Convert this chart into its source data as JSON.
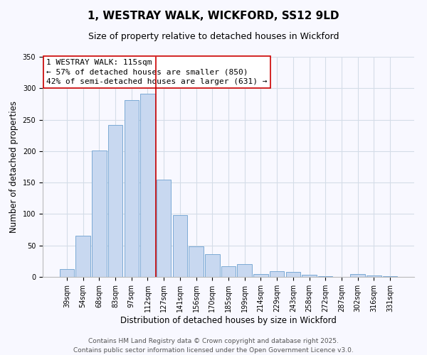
{
  "title": "1, WESTRAY WALK, WICKFORD, SS12 9LD",
  "subtitle": "Size of property relative to detached houses in Wickford",
  "xlabel": "Distribution of detached houses by size in Wickford",
  "ylabel": "Number of detached properties",
  "bar_labels": [
    "39sqm",
    "54sqm",
    "68sqm",
    "83sqm",
    "97sqm",
    "112sqm",
    "127sqm",
    "141sqm",
    "156sqm",
    "170sqm",
    "185sqm",
    "199sqm",
    "214sqm",
    "229sqm",
    "243sqm",
    "258sqm",
    "272sqm",
    "287sqm",
    "302sqm",
    "316sqm",
    "331sqm"
  ],
  "bar_values": [
    12,
    65,
    201,
    242,
    281,
    291,
    155,
    98,
    48,
    36,
    17,
    20,
    4,
    9,
    8,
    3,
    1,
    0,
    4,
    2,
    1
  ],
  "bar_color": "#c8d8f0",
  "bar_edge_color": "#7baad4",
  "vline_x": 5.5,
  "vline_color": "#cc0000",
  "annotation_title": "1 WESTRAY WALK: 115sqm",
  "annotation_line1": "← 57% of detached houses are smaller (850)",
  "annotation_line2": "42% of semi-detached houses are larger (631) →",
  "annotation_box_color": "#ffffff",
  "annotation_box_edge_color": "#cc0000",
  "ylim": [
    0,
    350
  ],
  "yticks": [
    0,
    50,
    100,
    150,
    200,
    250,
    300,
    350
  ],
  "footer1": "Contains HM Land Registry data © Crown copyright and database right 2025.",
  "footer2": "Contains public sector information licensed under the Open Government Licence v3.0.",
  "background_color": "#f8f8ff",
  "grid_color": "#d4dde8",
  "title_fontsize": 11,
  "subtitle_fontsize": 9,
  "axis_label_fontsize": 8.5,
  "tick_fontsize": 7,
  "annotation_fontsize": 8,
  "footer_fontsize": 6.5
}
